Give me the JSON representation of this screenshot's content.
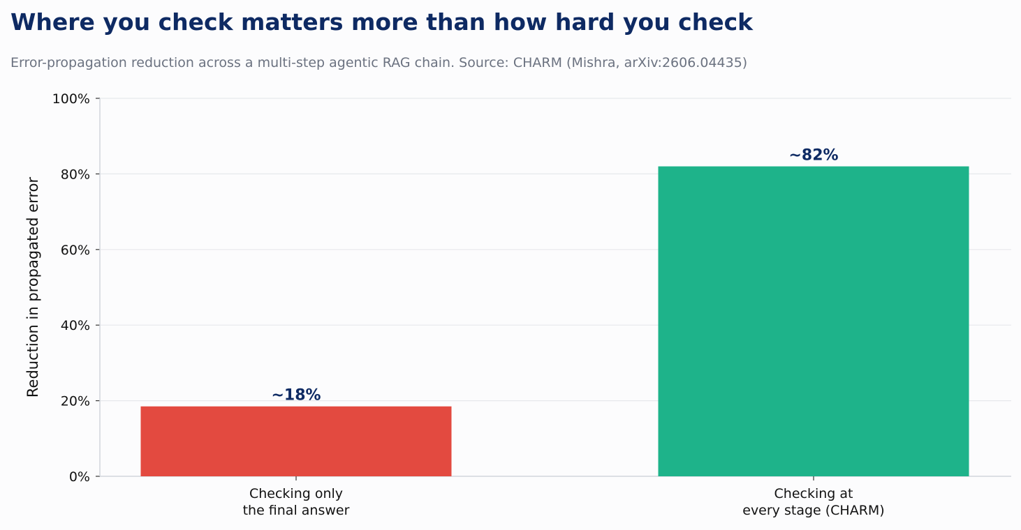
{
  "chart_data": {
    "type": "bar",
    "title": "Where you check matters more than how hard you check",
    "subtitle": "Error-propagation reduction across a multi-step agentic RAG chain. Source: CHARM (Mishra, arXiv:2606.04435)",
    "xlabel": "",
    "ylabel": "Reduction in propagated error",
    "categories": [
      [
        "Checking only",
        "the final answer"
      ],
      [
        "Checking at",
        "every stage (CHARM)"
      ]
    ],
    "values": [
      18.5,
      82
    ],
    "value_labels": [
      "~18%",
      "~82%"
    ],
    "ylim": [
      0,
      100
    ],
    "yticks": [
      0,
      20,
      40,
      60,
      80,
      100
    ],
    "ytick_labels": [
      "0%",
      "20%",
      "40%",
      "60%",
      "80%",
      "100%"
    ],
    "grid": true,
    "legend": "none",
    "colors": {
      "bars": [
        "#e34a40",
        "#1eb38a"
      ],
      "title": "#0e2a63",
      "subtitle": "#6b7280",
      "value_label": "#0e2a63",
      "grid": "#e6e8ec",
      "axis": "#d1d5db",
      "background": "#fcfcfd"
    }
  }
}
